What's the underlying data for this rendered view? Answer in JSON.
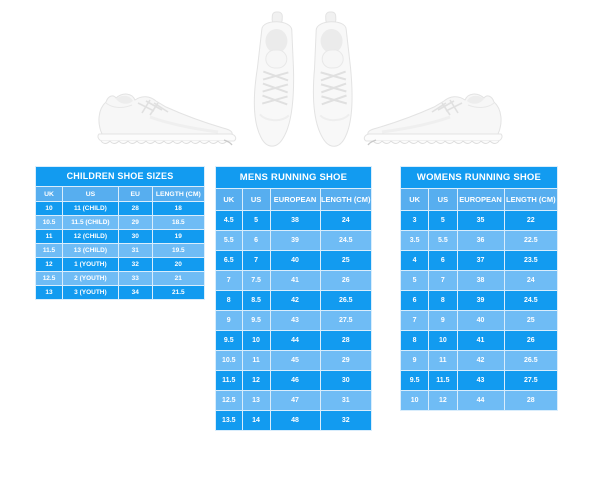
{
  "page": {
    "background": "#FFFFFF"
  },
  "images": {
    "left": "white-running-sneaker-side-view-facing-right",
    "center": "white-running-sneakers-pair-top-view",
    "right": "white-running-sneaker-side-view-facing-left"
  },
  "colors": {
    "accent_blue": "#129BF0",
    "row_light_blue": "#6FBCF5",
    "column_header_blue": "#57AEEF",
    "cell_border": "#D9EDFC",
    "text": "#FFFFFF",
    "shoe_white": "#F7F7F7",
    "shoe_shade": "#E3E3E3"
  },
  "chart_data": [
    {
      "type": "table",
      "title": "CHILDREN SHOE SIZES",
      "columns": [
        "UK",
        "US",
        "EU",
        "LENGTH (CM)"
      ],
      "rows": [
        [
          "10",
          "11 (CHILD)",
          "28",
          "18"
        ],
        [
          "10.5",
          "11.5 (CHILD)",
          "29",
          "18.5"
        ],
        [
          "11",
          "12 (CHILD)",
          "30",
          "19"
        ],
        [
          "11.5",
          "13 (CHILD)",
          "31",
          "19.5"
        ],
        [
          "12",
          "1 (YOUTH)",
          "32",
          "20"
        ],
        [
          "12.5",
          "2 (YOUTH)",
          "33",
          "21"
        ],
        [
          "13",
          "3 (YOUTH)",
          "34",
          "21.5"
        ]
      ]
    },
    {
      "type": "table",
      "title": "MENS RUNNING SHOE",
      "columns": [
        "UK",
        "US",
        "EUROPEAN",
        "LENGTH (CM)"
      ],
      "rows": [
        [
          "4.5",
          "5",
          "38",
          "24"
        ],
        [
          "5.5",
          "6",
          "39",
          "24.5"
        ],
        [
          "6.5",
          "7",
          "40",
          "25"
        ],
        [
          "7",
          "7.5",
          "41",
          "26"
        ],
        [
          "8",
          "8.5",
          "42",
          "26.5"
        ],
        [
          "9",
          "9.5",
          "43",
          "27.5"
        ],
        [
          "9.5",
          "10",
          "44",
          "28"
        ],
        [
          "10.5",
          "11",
          "45",
          "29"
        ],
        [
          "11.5",
          "12",
          "46",
          "30"
        ],
        [
          "12.5",
          "13",
          "47",
          "31"
        ],
        [
          "13.5",
          "14",
          "48",
          "32"
        ]
      ]
    },
    {
      "type": "table",
      "title": "WOMENS RUNNING SHOE",
      "columns": [
        "UK",
        "US",
        "EUROPEAN",
        "LENGTH (CM)"
      ],
      "rows": [
        [
          "3",
          "5",
          "35",
          "22"
        ],
        [
          "3.5",
          "5.5",
          "36",
          "22.5"
        ],
        [
          "4",
          "6",
          "37",
          "23.5"
        ],
        [
          "5",
          "7",
          "38",
          "24"
        ],
        [
          "6",
          "8",
          "39",
          "24.5"
        ],
        [
          "7",
          "9",
          "40",
          "25"
        ],
        [
          "8",
          "10",
          "41",
          "26"
        ],
        [
          "9",
          "11",
          "42",
          "26.5"
        ],
        [
          "9.5",
          "11.5",
          "43",
          "27.5"
        ],
        [
          "10",
          "12",
          "44",
          "28"
        ]
      ]
    }
  ]
}
